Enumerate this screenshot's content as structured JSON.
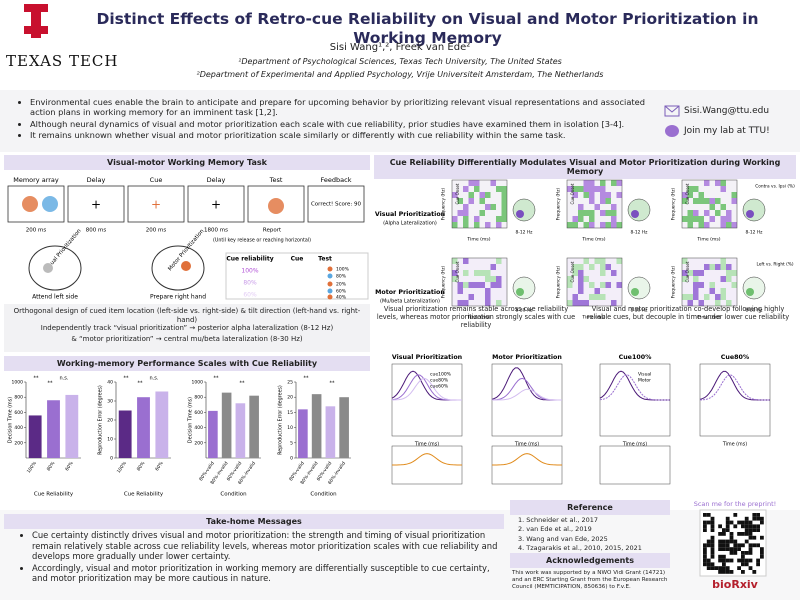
{
  "header": {
    "title": "Distinct Effects of Retro-cue Reliability on Visual and Motor Prioritization in Working Memory",
    "authors": "Sisi Wang¹,², Freek van Ede²",
    "affiliations": [
      "¹Department of Psychological Sciences, Texas Tech University, The United States",
      "²Department of Experimental and Applied Psychology, Vrije Universiteit Amsterdam, The Netherlands"
    ],
    "logo": "TEXAS TECH"
  },
  "contact": {
    "email": "Sisi.Wang@ttu.edu",
    "lab": "Join my lab at TTU!"
  },
  "intro": [
    "Environmental cues enable the brain to anticipate and prepare for upcoming behavior by prioritizing relevant visual representations and associated action plans in working memory for an imminent task [1,2].",
    "Although neural dynamics of visual and motor prioritization each scale with cue reliability, prior studies have examined them in isolation [3-4].",
    "It remains unknown whether visual and motor prioritization scale similarly or differently with cue reliability within the same task."
  ],
  "task": {
    "title": "Visual-motor Working Memory Task",
    "stages": [
      "Memory array",
      "Delay",
      "Cue",
      "Delay",
      "Test",
      "Feedback"
    ],
    "durations": [
      "200 ms",
      "800 ms",
      "200 ms",
      "1800 ms"
    ],
    "feedback": "Correct! Score: 90",
    "report": "Report",
    "report_note": "(Until key release or reaching horizontal)",
    "reliability_header": [
      "Cue reliability",
      "Cue",
      "Test"
    ],
    "reliability": [
      "100%",
      "80%",
      "60%"
    ],
    "test_pcts": [
      "100%",
      "80%",
      "20%",
      "60%",
      "40%"
    ],
    "head_labels": [
      "Visual Prioritization",
      "Motor Prioritization"
    ],
    "heads": [
      "Attend left side",
      "Prepare right hand"
    ],
    "design": "Orthogonal design of cued item location (left-side vs. right-side) & tilt direction (left-hand vs. right-hand)",
    "tracks": [
      "Independently track “visual prioritization” → posterior alpha lateralization (8-12 Hz)",
      "& “motor prioritization” → central mu/beta lateralization (8-30 Hz)"
    ]
  },
  "performance": {
    "title": "Working-memory Performance Scales with Cue Reliability",
    "charts": [
      {
        "ylabel": "Decision Time (ms)",
        "xlabel": "Cue Reliability",
        "categories": [
          "100%",
          "80%",
          "60%"
        ],
        "values": [
          560,
          760,
          830
        ],
        "colors": [
          "#5b2a86",
          "#9a6fd0",
          "#c9b2ea"
        ],
        "ylim": [
          0,
          1000
        ],
        "yticks": [
          200,
          400,
          600,
          800,
          1000
        ],
        "sig": [
          "**",
          "**",
          "n.s."
        ]
      },
      {
        "ylabel": "Reproduction Error (degrees)",
        "xlabel": "Cue Reliability",
        "categories": [
          "100%",
          "80%",
          "60%"
        ],
        "values": [
          25,
          32,
          35
        ],
        "colors": [
          "#5b2a86",
          "#9a6fd0",
          "#c9b2ea"
        ],
        "ylim": [
          0,
          40
        ],
        "yticks": [
          0,
          10,
          20,
          30,
          40
        ],
        "sig": [
          "**",
          "**",
          "n.s."
        ]
      },
      {
        "ylabel": "Decision Time (ms)",
        "xlabel": "Condition",
        "categories": [
          "80%-valid",
          "80%-invalid",
          "60%-valid",
          "60%-invalid"
        ],
        "values": [
          620,
          860,
          720,
          820
        ],
        "colors": [
          "#9a6fd0",
          "#8a8a8a",
          "#c9b2ea",
          "#8a8a8a"
        ],
        "ylim": [
          0,
          1000
        ],
        "yticks": [
          200,
          400,
          600,
          800,
          1000
        ],
        "sig": [
          "**",
          "**"
        ]
      },
      {
        "ylabel": "Reproduction Error (degrees)",
        "xlabel": "Condition",
        "categories": [
          "80%-valid",
          "80%-invalid",
          "60%-valid",
          "60%-invalid"
        ],
        "values": [
          16,
          21,
          17,
          20
        ],
        "colors": [
          "#9a6fd0",
          "#8a8a8a",
          "#c9b2ea",
          "#8a8a8a"
        ],
        "ylim": [
          0,
          25
        ],
        "yticks": [
          0,
          5,
          10,
          15,
          20,
          25
        ],
        "sig": [
          "**",
          "**"
        ]
      }
    ]
  },
  "eeg": {
    "title": "Cue Reliability Differentially Modulates Visual and Motor Prioritization during Working Memory",
    "columns": [
      "Cue 100%",
      "Cue 80%",
      "Cue 60%"
    ],
    "rows": [
      {
        "label": "Visual Prioritization",
        "sub": "(Alpha Lateralization)",
        "band": "8-12 Hz"
      },
      {
        "label": "Motor Prioritization",
        "sub": "(Mu/beta Lateralization)",
        "band": "8-30 Hz"
      }
    ],
    "ylabel": "Frequency (Hz)",
    "xlabel": "Time (ms)",
    "cue_onset": "Cue Onset",
    "colorbar": [
      "Contra vs. Ipsi (%)",
      "Left vs. Right (%)"
    ]
  },
  "findings": [
    {
      "text": "Visual prioritization remains stable across cue reliability levels, whereas motor prioritization strongly scales with cue reliability",
      "panels": [
        "Visual Prioritization",
        "Motor Prioritization"
      ],
      "legend": [
        "cue100%",
        "cue80%",
        "cue60%"
      ]
    },
    {
      "text": "Visual and motor prioritization co-develop following highly reliable cues, but decouple in time under lower cue reliability",
      "panels": [
        "Cue100%",
        "Cue80%"
      ],
      "legend": [
        "Visual",
        "Motor"
      ]
    }
  ],
  "takehome": {
    "title": "Take-home Messages",
    "items": [
      "Cue certainty distinctly drives visual and motor prioritization: the strength and timing of visual prioritization remain relatively stable across cue reliability levels, whereas motor prioritization scales with cue reliability and develops more gradually under lower certainty.",
      "Accordingly, visual and motor prioritization in working memory are differentially susceptible to cue certainty, and motor prioritization may be more cautious in nature."
    ]
  },
  "reference": {
    "title": "Reference",
    "items": [
      "1. Schneider et al., 2017",
      "2. van Ede et al., 2019",
      "3. Wang and van Ede, 2025",
      "4. Tzagarakis et al., 2010, 2015, 2021"
    ]
  },
  "ack": {
    "title": "Acknowledgements",
    "text": "This work was supported by a NWO Vidi Grant (14721) and an ERC Starting Grant from the European Research Council (MEMTICIPATION, 850636) to F.v.E."
  },
  "qr": {
    "caption": "Scan me for the preprint!",
    "brand": "bioRxiv"
  }
}
